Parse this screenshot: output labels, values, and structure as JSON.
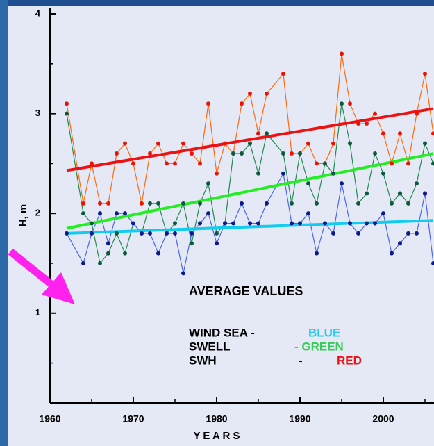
{
  "chart_data": {
    "type": "line",
    "ylabel": "H, m",
    "xlabel": "Y E A R S",
    "xlim": [
      1960,
      2006
    ],
    "xticks": [
      1960,
      1970,
      1980,
      1990,
      2000
    ],
    "xminor": [
      1965,
      1975,
      1985,
      1995,
      2005
    ],
    "ylim": [
      0.1,
      4
    ],
    "yticks": [
      1,
      2,
      3,
      4
    ],
    "yminor": [
      0.5,
      1.5,
      2.5,
      3.5
    ],
    "series": [
      {
        "color": "#ee1100",
        "line_color": "#ff6a10",
        "x": [
          1962,
          1964,
          1965,
          1966,
          1967,
          1968,
          1969,
          1970,
          1971,
          1972,
          1973,
          1974,
          1975,
          1976,
          1977,
          1978,
          1979,
          1980,
          1981,
          1982,
          1983,
          1984,
          1985,
          1986,
          1988,
          1989,
          1990,
          1991,
          1992,
          1993,
          1994,
          1995,
          1996,
          1997,
          1998,
          1999,
          2000,
          2001,
          2002,
          2003,
          2004,
          2005,
          2006
        ],
        "values": [
          3.1,
          2.1,
          2.5,
          2.1,
          2.1,
          2.6,
          2.7,
          2.5,
          2.1,
          2.6,
          2.7,
          2.5,
          2.5,
          2.7,
          2.6,
          2.5,
          3.1,
          2.4,
          2.7,
          2.6,
          3.1,
          3.2,
          2.8,
          3.2,
          3.4,
          2.6,
          2.6,
          2.7,
          2.5,
          2.5,
          2.7,
          3.6,
          3.1,
          2.9,
          2.9,
          3.0,
          2.8,
          2.5,
          2.8,
          2.5,
          3.0,
          3.4,
          2.8
        ]
      },
      {
        "color": "#0b5a3c",
        "line_color": "#238a50",
        "x": [
          1962,
          1964,
          1965,
          1966,
          1967,
          1968,
          1969,
          1970,
          1971,
          1972,
          1973,
          1974,
          1975,
          1976,
          1977,
          1978,
          1979,
          1980,
          1981,
          1982,
          1983,
          1984,
          1985,
          1986,
          1988,
          1989,
          1990,
          1991,
          1992,
          1993,
          1994,
          1995,
          1996,
          1997,
          1998,
          1999,
          2000,
          2001,
          2002,
          2003,
          2004,
          2005,
          2006
        ],
        "values": [
          3.0,
          2.0,
          1.9,
          1.5,
          1.6,
          1.8,
          1.6,
          1.9,
          1.8,
          2.1,
          2.1,
          1.8,
          1.9,
          2.1,
          1.7,
          2.1,
          2.3,
          1.8,
          1.9,
          2.6,
          2.6,
          2.7,
          2.4,
          2.8,
          2.6,
          2.1,
          2.6,
          2.3,
          2.1,
          2.5,
          2.4,
          3.1,
          2.7,
          2.1,
          2.2,
          2.6,
          2.4,
          2.1,
          2.2,
          2.1,
          2.3,
          2.7,
          2.5
        ]
      },
      {
        "color": "#0a1a8c",
        "line_color": "#4a66ee",
        "x": [
          1962,
          1964,
          1965,
          1966,
          1967,
          1968,
          1969,
          1970,
          1971,
          1972,
          1973,
          1974,
          1975,
          1976,
          1977,
          1978,
          1979,
          1980,
          1981,
          1982,
          1983,
          1984,
          1985,
          1986,
          1988,
          1989,
          1990,
          1991,
          1992,
          1993,
          1994,
          1995,
          1996,
          1997,
          1998,
          1999,
          2000,
          2001,
          2002,
          2003,
          2004,
          2005,
          2006
        ],
        "values": [
          1.8,
          1.5,
          1.8,
          2.0,
          1.7,
          2.0,
          2.0,
          1.9,
          1.8,
          1.8,
          1.6,
          1.8,
          1.8,
          1.4,
          1.8,
          1.9,
          2.0,
          1.7,
          1.9,
          1.9,
          2.1,
          1.9,
          1.9,
          2.1,
          2.4,
          1.9,
          1.9,
          2.0,
          1.6,
          1.9,
          1.8,
          2.3,
          1.9,
          1.8,
          1.9,
          1.9,
          2.0,
          1.6,
          1.7,
          1.8,
          1.8,
          2.2,
          1.5
        ]
      }
    ],
    "trends": [
      {
        "color": "#ee1111",
        "x": [
          1962,
          2006
        ],
        "values": [
          2.43,
          3.05
        ]
      },
      {
        "color": "#22ee22",
        "x": [
          1962,
          2006
        ],
        "values": [
          1.85,
          2.6
        ]
      },
      {
        "color": "#11ccee",
        "x": [
          1962,
          2006
        ],
        "values": [
          1.8,
          1.93
        ]
      }
    ],
    "annotations": {
      "heading": "AVERAGE VALUES",
      "wind_sea": "WIND SEA -",
      "wind_sea_color": "BLUE",
      "swell": "SWELL",
      "swell_color": "- GREEN",
      "swh": "SWH",
      "swh_dash": "-",
      "swh_color": "RED"
    }
  }
}
